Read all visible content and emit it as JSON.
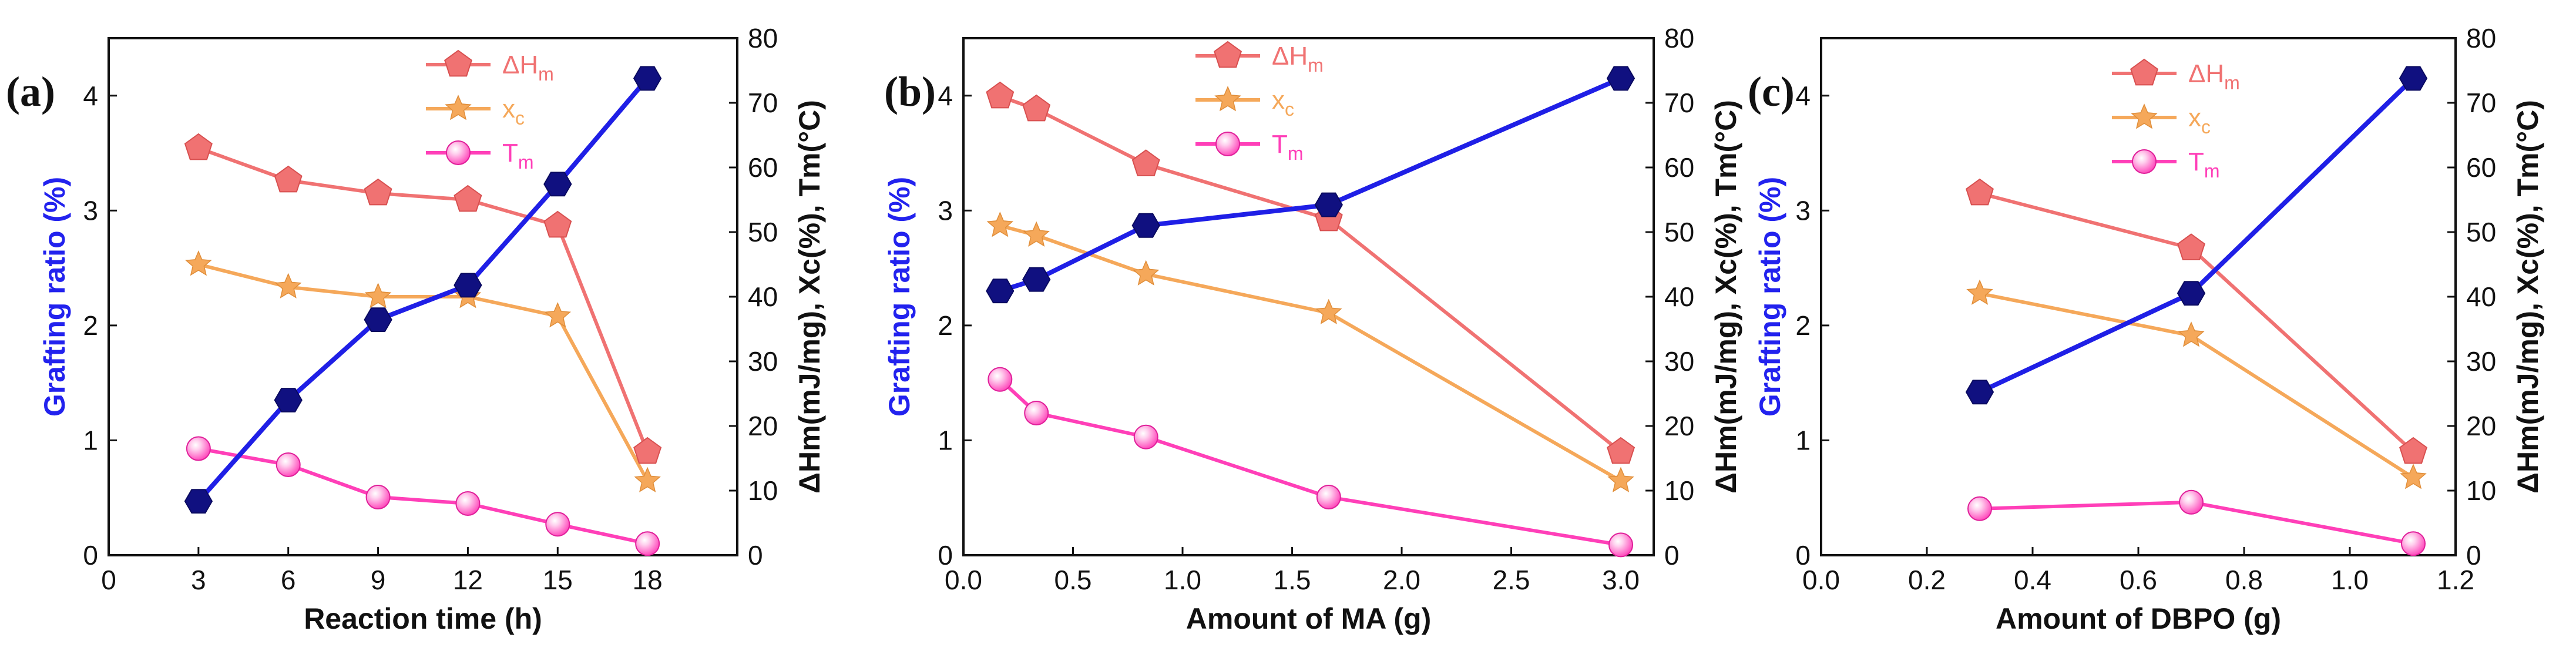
{
  "colors": {
    "grafting": "#1f1fe6",
    "dh": "#f07272",
    "xc": "#f5a85a",
    "tm": "#ff3fb8",
    "axis": "#111111",
    "left_axis_title": "#2222ee"
  },
  "chart_data": [
    {
      "type": "line",
      "panel_label": "(a)",
      "xlabel": "Reaction time (h)",
      "ylabel_left": "Grafting ratio (%)",
      "ylabel_right": "ΔHm(mJ/mg), Xc(%), Tm(°C)",
      "xlim": [
        0,
        21
      ],
      "xticks": [
        0,
        3,
        6,
        9,
        12,
        15,
        18
      ],
      "xtick_labels": [
        "0",
        "3",
        "6",
        "9",
        "12",
        "15",
        "18"
      ],
      "ylim_left": [
        0,
        4.5
      ],
      "yticks_left": [
        0,
        1,
        2,
        3,
        4
      ],
      "ylim_right": [
        0,
        80
      ],
      "yticks_right": [
        0,
        10,
        20,
        30,
        40,
        50,
        60,
        70,
        80
      ],
      "legend": [
        {
          "key": "dh",
          "main": "ΔH",
          "sub": "m"
        },
        {
          "key": "xc",
          "main": "x",
          "sub": "c"
        },
        {
          "key": "tm",
          "main": "T",
          "sub": "m"
        }
      ],
      "series": [
        {
          "name": "Grafting ratio",
          "key": "grafting",
          "axis": "left",
          "marker": "hexagon",
          "x": [
            3,
            6,
            9,
            12,
            15,
            18
          ],
          "values": [
            0.47,
            1.35,
            2.05,
            2.35,
            3.23,
            4.15
          ]
        },
        {
          "name": "ΔHm",
          "key": "dh",
          "axis": "right",
          "marker": "pentagon",
          "x": [
            3,
            6,
            9,
            12,
            15,
            18
          ],
          "values": [
            63,
            58,
            56,
            55,
            51,
            16
          ]
        },
        {
          "name": "xc",
          "key": "xc",
          "axis": "right",
          "marker": "star",
          "x": [
            3,
            6,
            9,
            12,
            15,
            18
          ],
          "values": [
            45,
            41.5,
            40,
            40,
            37,
            11.5
          ]
        },
        {
          "name": "Tm",
          "key": "tm",
          "axis": "right",
          "marker": "sphere",
          "x": [
            3,
            6,
            9,
            12,
            15,
            18
          ],
          "values": [
            16.5,
            14,
            9,
            8,
            4.8,
            1.8
          ]
        }
      ]
    },
    {
      "type": "line",
      "panel_label": "(b)",
      "xlabel": "Amount of MA (g)",
      "ylabel_left": "Grafting ratio (%)",
      "ylabel_right": "ΔHm(mJ/mg), Xc(%), Tm(°C)",
      "xlim": [
        0,
        3.15
      ],
      "xticks": [
        0,
        0.5,
        1,
        1.5,
        2,
        2.5,
        3
      ],
      "xtick_labels": [
        "0.0",
        "0.5",
        "1.0",
        "1.5",
        "2.0",
        "2.5",
        "3.0"
      ],
      "ylim_left": [
        0,
        4.5
      ],
      "yticks_left": [
        0,
        1,
        2,
        3,
        4
      ],
      "ylim_right": [
        0,
        80
      ],
      "yticks_right": [
        0,
        10,
        20,
        30,
        40,
        50,
        60,
        70,
        80
      ],
      "legend": [
        {
          "key": "dh",
          "main": "ΔH",
          "sub": "m"
        },
        {
          "key": "xc",
          "main": "x",
          "sub": "c"
        },
        {
          "key": "tm",
          "main": "T",
          "sub": "m"
        }
      ],
      "series": [
        {
          "name": "Grafting ratio",
          "key": "grafting",
          "axis": "left",
          "marker": "hexagon",
          "x": [
            0.167,
            0.333,
            0.833,
            1.667,
            3.0
          ],
          "values": [
            2.3,
            2.4,
            2.87,
            3.05,
            4.15
          ]
        },
        {
          "name": "ΔHm",
          "key": "dh",
          "axis": "right",
          "marker": "pentagon",
          "x": [
            0.167,
            0.333,
            0.833,
            1.667,
            3.0
          ],
          "values": [
            71,
            69,
            60.5,
            52,
            16
          ]
        },
        {
          "name": "xc",
          "key": "xc",
          "axis": "right",
          "marker": "star",
          "x": [
            0.167,
            0.333,
            0.833,
            1.667,
            3.0
          ],
          "values": [
            51,
            49.5,
            43.5,
            37.5,
            11.5
          ]
        },
        {
          "name": "Tm",
          "key": "tm",
          "axis": "right",
          "marker": "sphere",
          "x": [
            0.167,
            0.333,
            0.833,
            1.667,
            3.0
          ],
          "values": [
            27.2,
            22,
            18.3,
            9,
            1.6
          ]
        }
      ]
    },
    {
      "type": "line",
      "panel_label": "(c)",
      "xlabel": "Amount of DBPO (g)",
      "ylabel_left": "Grafting ratio (%)",
      "ylabel_right": "ΔHm(mJ/mg), Xc(%), Tm(°C)",
      "xlim": [
        0,
        1.2
      ],
      "xticks": [
        0,
        0.2,
        0.4,
        0.6,
        0.8,
        1.0,
        1.2
      ],
      "xtick_labels": [
        "0.0",
        "0.2",
        "0.4",
        "0.6",
        "0.8",
        "1.0",
        "1.2"
      ],
      "ylim_left": [
        0,
        4.5
      ],
      "yticks_left": [
        0,
        1,
        2,
        3,
        4
      ],
      "ylim_right": [
        0,
        80
      ],
      "yticks_right": [
        0,
        10,
        20,
        30,
        40,
        50,
        60,
        70,
        80
      ],
      "legend": [
        {
          "key": "dh",
          "main": "ΔH",
          "sub": "m"
        },
        {
          "key": "xc",
          "main": "x",
          "sub": "c"
        },
        {
          "key": "tm",
          "main": "T",
          "sub": "m"
        }
      ],
      "series": [
        {
          "name": "Grafting ratio",
          "key": "grafting",
          "axis": "left",
          "marker": "hexagon",
          "x": [
            0.3,
            0.7,
            1.12
          ],
          "values": [
            1.42,
            2.28,
            4.15
          ]
        },
        {
          "name": "ΔHm",
          "key": "dh",
          "axis": "right",
          "marker": "pentagon",
          "x": [
            0.3,
            0.7,
            1.12
          ],
          "values": [
            56,
            47.5,
            16
          ]
        },
        {
          "name": "xc",
          "key": "xc",
          "axis": "right",
          "marker": "star",
          "x": [
            0.3,
            0.7,
            1.12
          ],
          "values": [
            40.5,
            34,
            12
          ]
        },
        {
          "name": "Tm",
          "key": "tm",
          "axis": "right",
          "marker": "sphere",
          "x": [
            0.3,
            0.7,
            1.12
          ],
          "values": [
            7.2,
            8.2,
            1.8
          ]
        }
      ]
    }
  ]
}
